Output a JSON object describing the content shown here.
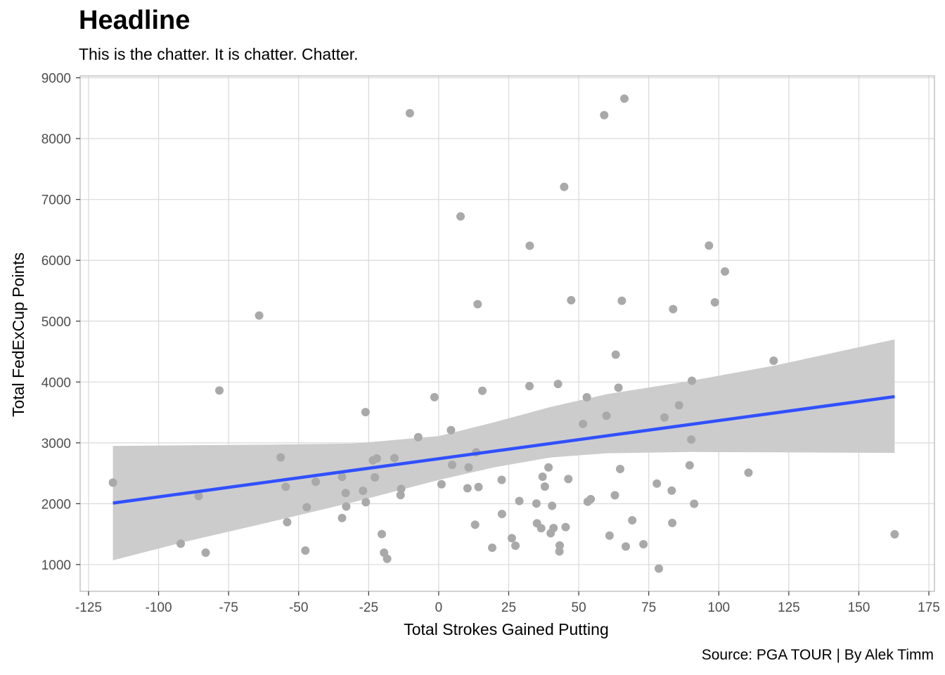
{
  "header": {
    "title": "Headline",
    "subtitle": "This is the chatter. It is chatter. Chatter."
  },
  "caption": "Source: PGA TOUR | By Alek Timm",
  "colors": {
    "points": "#a9a9a9",
    "trend_line": "#3050ff",
    "confidence_band": "#cccccc",
    "grid": "#d9d9d9",
    "panel_border": "#b3b3b3"
  },
  "chart_data": {
    "type": "scatter",
    "title": "Headline",
    "subtitle": "This is the chatter. It is chatter. Chatter.",
    "xlabel": "Total Strokes Gained Putting",
    "ylabel": "Total FedExCup Points",
    "xlim": [
      -128,
      177
    ],
    "ylim": [
      560,
      9030
    ],
    "x_ticks": [
      -125,
      -100,
      -75,
      -50,
      -25,
      0,
      25,
      50,
      75,
      100,
      125,
      150,
      175
    ],
    "y_ticks": [
      1000,
      2000,
      3000,
      4000,
      5000,
      6000,
      7000,
      8000,
      9000
    ],
    "x_tick_labels": [
      "-125",
      "-100",
      "-75",
      "-50",
      "-25",
      "0",
      "25",
      "50",
      "75",
      "100",
      "125",
      "150",
      "175"
    ],
    "y_tick_labels": [
      "1000",
      "2000",
      "3000",
      "4000",
      "5000",
      "6000",
      "7000",
      "8000",
      "9000"
    ],
    "grid": true,
    "legend": "none",
    "points": [
      [
        -116.3,
        2347
      ],
      [
        -92.1,
        1343
      ],
      [
        -85.7,
        2126
      ],
      [
        -83.2,
        1195
      ],
      [
        -78.3,
        3860
      ],
      [
        -64.1,
        5092
      ],
      [
        -56.4,
        2761
      ],
      [
        -54.6,
        2279
      ],
      [
        -54.1,
        1697
      ],
      [
        -47.6,
        1230
      ],
      [
        -47.1,
        1942
      ],
      [
        -43.9,
        2360
      ],
      [
        -34.5,
        1765
      ],
      [
        -34.5,
        2440
      ],
      [
        -33.2,
        2176
      ],
      [
        -33.0,
        1953
      ],
      [
        -27.0,
        2212
      ],
      [
        -26.1,
        3506
      ],
      [
        -26.0,
        2025
      ],
      [
        -23.5,
        2712
      ],
      [
        -22.8,
        2433
      ],
      [
        -22.1,
        2744
      ],
      [
        -20.3,
        1501
      ],
      [
        -19.5,
        1196
      ],
      [
        -18.4,
        1094
      ],
      [
        -15.8,
        2748
      ],
      [
        -13.6,
        2142
      ],
      [
        -13.4,
        2242
      ],
      [
        -10.3,
        8418
      ],
      [
        -7.3,
        3093
      ],
      [
        -1.5,
        3750
      ],
      [
        1.0,
        2320
      ],
      [
        4.4,
        3210
      ],
      [
        4.8,
        2639
      ],
      [
        7.8,
        6721
      ],
      [
        10.3,
        2254
      ],
      [
        10.7,
        2597
      ],
      [
        13.0,
        1654
      ],
      [
        13.4,
        2846
      ],
      [
        13.9,
        5279
      ],
      [
        14.2,
        2275
      ],
      [
        15.6,
        3855
      ],
      [
        19.1,
        1276
      ],
      [
        22.5,
        2392
      ],
      [
        22.6,
        1831
      ],
      [
        26.1,
        1434
      ],
      [
        27.4,
        1310
      ],
      [
        28.8,
        2045
      ],
      [
        32.4,
        3933
      ],
      [
        32.5,
        6239
      ],
      [
        34.9,
        2003
      ],
      [
        35.1,
        1678
      ],
      [
        36.6,
        1596
      ],
      [
        37.1,
        2444
      ],
      [
        37.9,
        2282
      ],
      [
        39.2,
        2597
      ],
      [
        40.0,
        1514
      ],
      [
        40.5,
        1965
      ],
      [
        41.0,
        1600
      ],
      [
        42.6,
        3968
      ],
      [
        43.1,
        1216
      ],
      [
        43.2,
        1313
      ],
      [
        44.8,
        7207
      ],
      [
        45.3,
        1616
      ],
      [
        46.3,
        2405
      ],
      [
        47.3,
        5344
      ],
      [
        51.5,
        3311
      ],
      [
        52.9,
        3749
      ],
      [
        53.2,
        2033
      ],
      [
        54.3,
        2075
      ],
      [
        59.1,
        8385
      ],
      [
        59.9,
        3445
      ],
      [
        61.0,
        1476
      ],
      [
        62.9,
        2138
      ],
      [
        63.2,
        4450
      ],
      [
        64.2,
        3906
      ],
      [
        64.8,
        2571
      ],
      [
        65.4,
        5336
      ],
      [
        66.3,
        8657
      ],
      [
        66.8,
        1296
      ],
      [
        69.1,
        1727
      ],
      [
        73.1,
        1334
      ],
      [
        77.9,
        2331
      ],
      [
        78.6,
        934
      ],
      [
        80.6,
        3418
      ],
      [
        83.2,
        2216
      ],
      [
        83.4,
        1684
      ],
      [
        83.7,
        5198
      ],
      [
        85.8,
        3618
      ],
      [
        89.6,
        2632
      ],
      [
        90.2,
        3055
      ],
      [
        90.4,
        4021
      ],
      [
        91.2,
        1999
      ],
      [
        96.5,
        6243
      ],
      [
        98.6,
        5309
      ],
      [
        102.2,
        5817
      ],
      [
        110.6,
        2511
      ],
      [
        119.6,
        4350
      ],
      [
        162.8,
        1497
      ]
    ],
    "trend_line": {
      "x": [
        -116.3,
        162.8
      ],
      "y": [
        2010,
        3760
      ]
    },
    "confidence_band": {
      "x": [
        -116.3,
        -90,
        -60,
        -30,
        0,
        20,
        40,
        60,
        90,
        120,
        162.8
      ],
      "lower": [
        1070,
        1380,
        1700,
        2030,
        2390,
        2600,
        2760,
        2830,
        2850,
        2845,
        2835
      ],
      "upper": [
        2950,
        2960,
        2970,
        2990,
        3110,
        3340,
        3590,
        3800,
        4020,
        4270,
        4700
      ]
    }
  }
}
